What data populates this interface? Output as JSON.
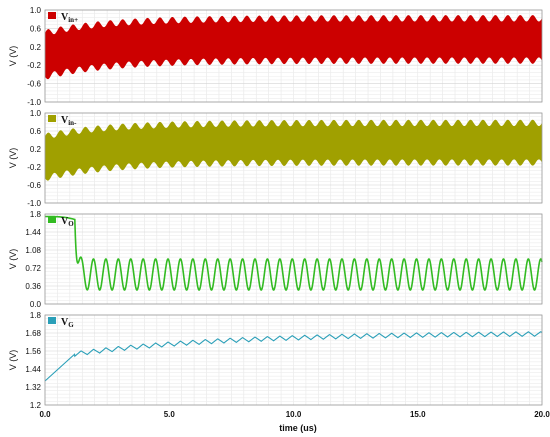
{
  "chart_data": {
    "type": "line",
    "x_axis": {
      "label": "time (us)",
      "ticks": [
        "0.0",
        "5.0",
        "10.0",
        "15.0",
        "20.0"
      ],
      "range": [
        0,
        20
      ]
    },
    "panels": [
      {
        "legend": {
          "main": "V",
          "sub": "in+"
        },
        "ylabel": "V (V)",
        "ylim": [
          -1.0,
          1.0
        ],
        "yticks": [
          "1.0",
          "0.6",
          "0.2",
          "-0.2",
          "-0.6",
          "-1.0"
        ],
        "ytick_values": [
          1.0,
          0.6,
          0.2,
          -0.2,
          -0.6,
          -1.0
        ],
        "color": "#cc0000",
        "kind": "envelope",
        "upper_start": 0.5,
        "upper_end": 0.82,
        "lower_start": -0.45,
        "lower_end": -0.1,
        "ripple": 0.07
      },
      {
        "legend": {
          "main": "V",
          "sub": "in-"
        },
        "ylabel": "V (V)",
        "ylim": [
          -1.0,
          1.0
        ],
        "yticks": [
          "1.0",
          "0.6",
          "0.2",
          "-0.2",
          "-0.6",
          "-1.0"
        ],
        "ytick_values": [
          1.0,
          0.6,
          0.2,
          -0.2,
          -0.6,
          -1.0
        ],
        "color": "#a0a000",
        "kind": "envelope",
        "upper_start": 0.48,
        "upper_end": 0.78,
        "lower_start": -0.45,
        "lower_end": -0.1,
        "ripple": 0.07
      },
      {
        "legend": {
          "main": "V",
          "sub": "O"
        },
        "ylabel": "V (V)",
        "ylim": [
          0,
          1.8
        ],
        "yticks": [
          "1.8",
          "1.44",
          "1.08",
          "0.72",
          "0.36",
          "0.0"
        ],
        "ytick_values": [
          1.8,
          1.44,
          1.08,
          0.72,
          0.36,
          0.0
        ],
        "color": "#33bb22",
        "kind": "output",
        "initial_level": 1.75,
        "drop_time": 1.2,
        "osc_high": 0.9,
        "osc_low": 0.28,
        "period": 0.5
      },
      {
        "legend": {
          "main": "V",
          "sub": "G"
        },
        "ylabel": "V (V)",
        "ylim": [
          1.2,
          1.8
        ],
        "yticks": [
          "1.8",
          "1.68",
          "1.56",
          "1.44",
          "1.32",
          "1.2"
        ],
        "ytick_values": [
          1.8,
          1.68,
          1.56,
          1.44,
          1.32,
          1.2
        ],
        "color": "#2a9fb8",
        "kind": "sawtooth",
        "start": 1.36,
        "knee_time": 1.2,
        "knee_value": 1.54,
        "end_value": 1.68,
        "ripple": 0.03,
        "period": 0.5
      }
    ]
  }
}
